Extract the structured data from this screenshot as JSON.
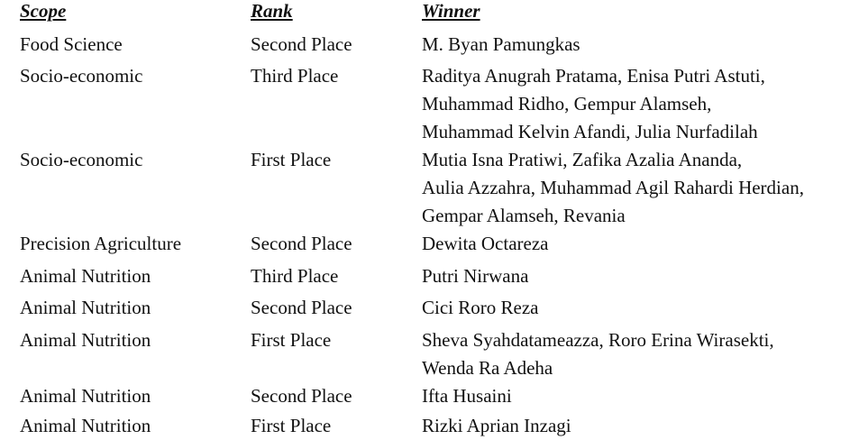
{
  "headers": {
    "scope": "Scope",
    "rank": "Rank",
    "winner": "Winner"
  },
  "rows": [
    {
      "scope": "Food Science",
      "rank": "Second Place",
      "winner": [
        "M. Byan Pamungkas"
      ]
    },
    {
      "scope": "Socio-economic",
      "rank": "Third Place",
      "winner": [
        "Raditya Anugrah Pratama, Enisa Putri Astuti,",
        "Muhammad Ridho, Gempur Alamseh,",
        "Muhammad Kelvin Afandi, Julia Nurfadilah"
      ]
    },
    {
      "scope": "Socio-economic",
      "rank": "First Place",
      "winner": [
        "Mutia Isna Pratiwi, Zafika Azalia Ananda,",
        "Aulia Azzahra, Muhammad Agil Rahardi Herdian,",
        "Gempar Alamseh, Revania"
      ]
    },
    {
      "scope": "Precision Agriculture",
      "rank": "Second Place",
      "winner": [
        "Dewita Octareza"
      ]
    },
    {
      "scope": "Animal Nutrition",
      "rank": "Third Place",
      "winner": [
        "Putri Nirwana"
      ]
    },
    {
      "scope": "Animal Nutrition",
      "rank": "Second Place",
      "winner": [
        "Cici Roro Reza"
      ]
    },
    {
      "scope": "Animal Nutrition",
      "rank": "First Place",
      "winner": [
        "Sheva Syahdatameazza, Roro Erina Wirasekti,",
        "Wenda Ra Adeha"
      ]
    },
    {
      "scope": "Animal Nutrition",
      "rank": "Second Place",
      "winner": [
        "Ifta Husaini"
      ]
    },
    {
      "scope": "Animal Nutrition",
      "rank": "First Place",
      "winner": [
        "Rizki Aprian Inzagi"
      ]
    }
  ]
}
